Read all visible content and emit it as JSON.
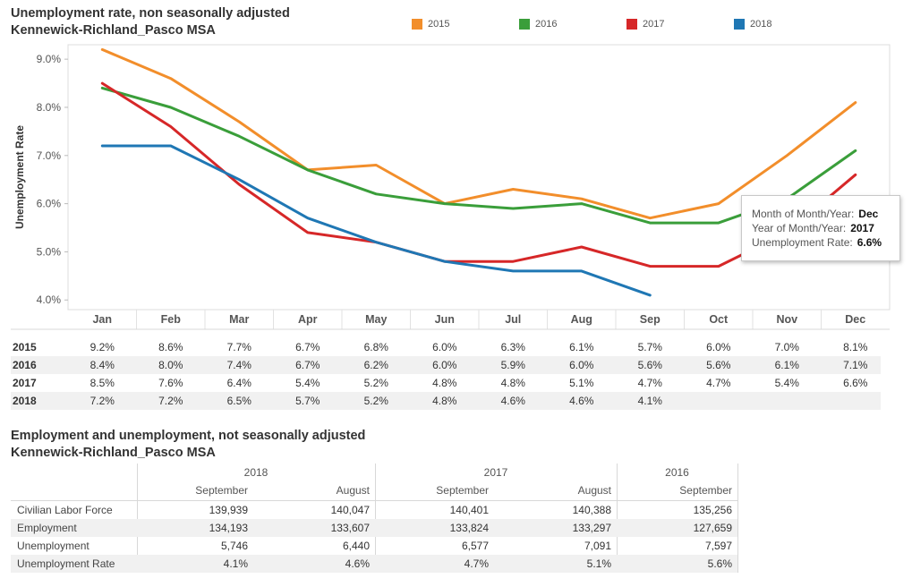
{
  "chart_title": "Unemployment rate, non seasonally adjusted",
  "chart_subtitle": "Kennewick-Richland_Pasco MSA",
  "legend": [
    {
      "label": "2015",
      "color": "#f28e2b"
    },
    {
      "label": "2016",
      "color": "#3a9e3a"
    },
    {
      "label": "2017",
      "color": "#d62728"
    },
    {
      "label": "2018",
      "color": "#1f77b4"
    }
  ],
  "chart_data": {
    "type": "line",
    "title": "Unemployment rate, non seasonally adjusted",
    "subtitle": "Kennewick-Richland_Pasco MSA",
    "xlabel": "",
    "ylabel": "Unemployment Rate",
    "categories": [
      "Jan",
      "Feb",
      "Mar",
      "Apr",
      "May",
      "Jun",
      "Jul",
      "Aug",
      "Sep",
      "Oct",
      "Nov",
      "Dec"
    ],
    "ylim": [
      3.8,
      9.3
    ],
    "yticks": [
      4.0,
      5.0,
      6.0,
      7.0,
      8.0,
      9.0
    ],
    "ytick_labels": [
      "4.0%",
      "5.0%",
      "6.0%",
      "7.0%",
      "8.0%",
      "9.0%"
    ],
    "grid": false,
    "legend_position": "top",
    "series": [
      {
        "name": "2015",
        "color": "#f28e2b",
        "values": [
          9.2,
          8.6,
          7.7,
          6.7,
          6.8,
          6.0,
          6.3,
          6.1,
          5.7,
          6.0,
          7.0,
          8.1
        ]
      },
      {
        "name": "2016",
        "color": "#3a9e3a",
        "values": [
          8.4,
          8.0,
          7.4,
          6.7,
          6.2,
          6.0,
          5.9,
          6.0,
          5.6,
          5.6,
          6.1,
          7.1
        ]
      },
      {
        "name": "2017",
        "color": "#d62728",
        "values": [
          8.5,
          7.6,
          6.4,
          5.4,
          5.2,
          4.8,
          4.8,
          5.1,
          4.7,
          4.7,
          5.4,
          6.6
        ]
      },
      {
        "name": "2018",
        "color": "#1f77b4",
        "values": [
          7.2,
          7.2,
          6.5,
          5.7,
          5.2,
          4.8,
          4.6,
          4.6,
          4.1,
          null,
          null,
          null
        ]
      }
    ]
  },
  "tooltip": {
    "rows": [
      {
        "label": "Month of Month/Year:",
        "value": "Dec"
      },
      {
        "label": "Year of Month/Year:",
        "value": "2017"
      },
      {
        "label": "Unemployment Rate:",
        "value": "6.6%"
      }
    ]
  },
  "rate_table": {
    "rows": [
      {
        "year": "2015",
        "values": [
          "9.2%",
          "8.6%",
          "7.7%",
          "6.7%",
          "6.8%",
          "6.0%",
          "6.3%",
          "6.1%",
          "5.7%",
          "6.0%",
          "7.0%",
          "8.1%"
        ]
      },
      {
        "year": "2016",
        "values": [
          "8.4%",
          "8.0%",
          "7.4%",
          "6.7%",
          "6.2%",
          "6.0%",
          "5.9%",
          "6.0%",
          "5.6%",
          "5.6%",
          "6.1%",
          "7.1%"
        ]
      },
      {
        "year": "2017",
        "values": [
          "8.5%",
          "7.6%",
          "6.4%",
          "5.4%",
          "5.2%",
          "4.8%",
          "4.8%",
          "5.1%",
          "4.7%",
          "4.7%",
          "5.4%",
          "6.6%"
        ]
      },
      {
        "year": "2018",
        "values": [
          "7.2%",
          "7.2%",
          "6.5%",
          "5.7%",
          "5.2%",
          "4.8%",
          "4.6%",
          "4.6%",
          "4.1%",
          "",
          "",
          ""
        ]
      }
    ]
  },
  "employment": {
    "title": "Employment and unemployment, not seasonally adjusted",
    "subtitle": "Kennewick-Richland_Pasco MSA",
    "years": [
      "2018",
      "2017",
      "2016"
    ],
    "months": [
      "September",
      "August",
      "September",
      "August",
      "September"
    ],
    "rows": [
      {
        "label": "Civilian Labor Force",
        "values": [
          "139,939",
          "140,047",
          "140,401",
          "140,388",
          "135,256"
        ]
      },
      {
        "label": "Employment",
        "values": [
          "134,193",
          "133,607",
          "133,824",
          "133,297",
          "127,659"
        ]
      },
      {
        "label": "Unemployment",
        "values": [
          "5,746",
          "6,440",
          "6,577",
          "7,091",
          "7,597"
        ]
      },
      {
        "label": "Unemployment Rate",
        "values": [
          "4.1%",
          "4.6%",
          "4.7%",
          "5.1%",
          "5.6%"
        ]
      }
    ]
  }
}
